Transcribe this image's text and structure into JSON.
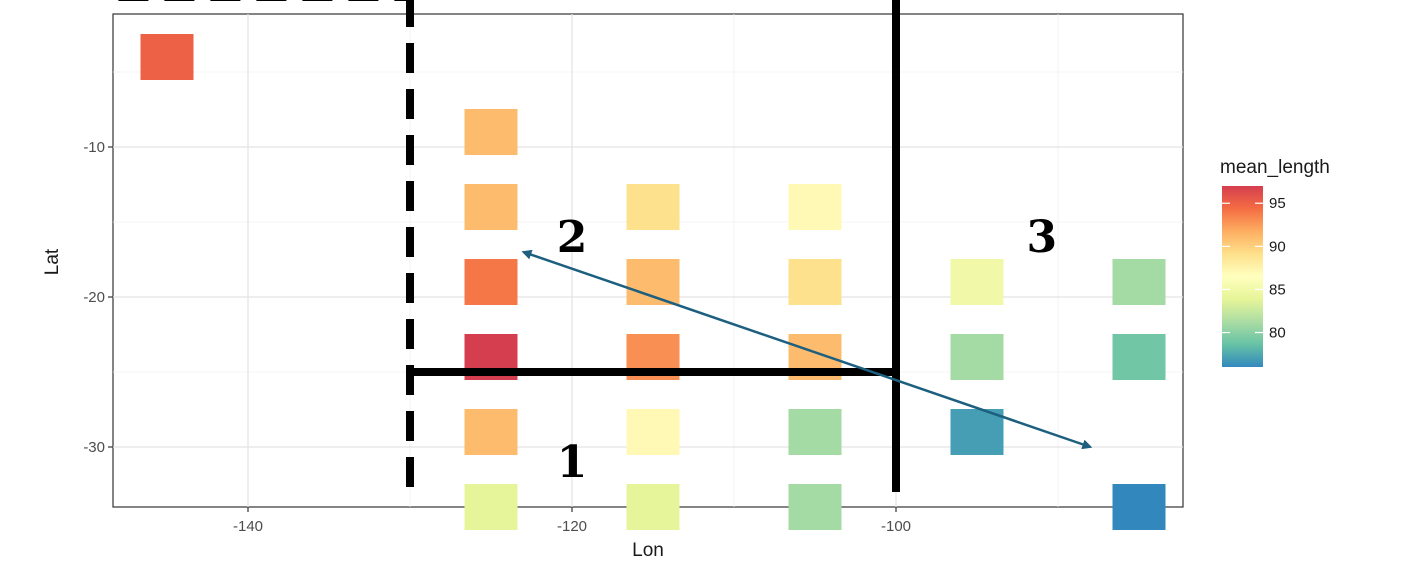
{
  "chart_data": {
    "type": "heatmap",
    "xlabel": "Lon",
    "ylabel": "Lat",
    "xlim": [
      -148,
      -82
    ],
    "ylim": [
      -34,
      9
    ],
    "x_ticks": [
      -140,
      -120,
      -100
    ],
    "y_ticks": [
      -10,
      -20,
      -30
    ],
    "grid": true,
    "tiles": [
      {
        "lon": -145,
        "lat": -4,
        "value": 95
      },
      {
        "lon": -125,
        "lat": -9,
        "value": 91
      },
      {
        "lon": -125,
        "lat": -14,
        "value": 91
      },
      {
        "lon": -115,
        "lat": -14,
        "value": 89
      },
      {
        "lon": -105,
        "lat": -14,
        "value": 87
      },
      {
        "lon": -125,
        "lat": -19,
        "value": 94
      },
      {
        "lon": -115,
        "lat": -19,
        "value": 91
      },
      {
        "lon": -105,
        "lat": -19,
        "value": 89
      },
      {
        "lon": -95,
        "lat": -19,
        "value": 85
      },
      {
        "lon": -85,
        "lat": -19,
        "value": 81
      },
      {
        "lon": -125,
        "lat": -24,
        "value": 97
      },
      {
        "lon": -115,
        "lat": -24,
        "value": 93
      },
      {
        "lon": -105,
        "lat": -24,
        "value": 91
      },
      {
        "lon": -95,
        "lat": -24,
        "value": 81
      },
      {
        "lon": -85,
        "lat": -24,
        "value": 79
      },
      {
        "lon": -125,
        "lat": -29,
        "value": 91
      },
      {
        "lon": -115,
        "lat": -29,
        "value": 87
      },
      {
        "lon": -105,
        "lat": -29,
        "value": 81
      },
      {
        "lon": -95,
        "lat": -29,
        "value": 77
      },
      {
        "lon": -125,
        "lat": -34,
        "value": 84
      },
      {
        "lon": -115,
        "lat": -34,
        "value": 84
      },
      {
        "lon": -105,
        "lat": -34,
        "value": 81
      },
      {
        "lon": -85,
        "lat": -34,
        "value": 76
      }
    ],
    "legend": {
      "title": "mean_length",
      "placement": "right",
      "range": [
        76,
        97
      ],
      "ticks": [
        95,
        90,
        85,
        80
      ],
      "palette": [
        "#d53e4f",
        "#f46d43",
        "#fdae61",
        "#fee08b",
        "#ffffbf",
        "#e6f598",
        "#abdda4",
        "#66c2a5",
        "#3288bd"
      ]
    },
    "annotations": {
      "region_labels": [
        {
          "text": "1",
          "lon": -120,
          "lat": -31
        },
        {
          "text": "2",
          "lon": -120,
          "lat": -16
        },
        {
          "text": "3",
          "lon": -91,
          "lat": -16
        }
      ],
      "dashed_lines": [
        {
          "from": [
            -148,
            0
          ],
          "to": [
            -130,
            0
          ]
        },
        {
          "from": [
            -130,
            0
          ],
          "to": [
            -130,
            -34
          ]
        }
      ],
      "solid_lines": [
        {
          "from": [
            -130,
            -25
          ],
          "to": [
            -100,
            -25
          ]
        },
        {
          "from": [
            -100,
            6
          ],
          "to": [
            -100,
            -33
          ]
        }
      ],
      "arrow": {
        "from": [
          -123,
          -17
        ],
        "to": [
          -88,
          -30
        ],
        "color": "#1d5f7f"
      }
    }
  }
}
